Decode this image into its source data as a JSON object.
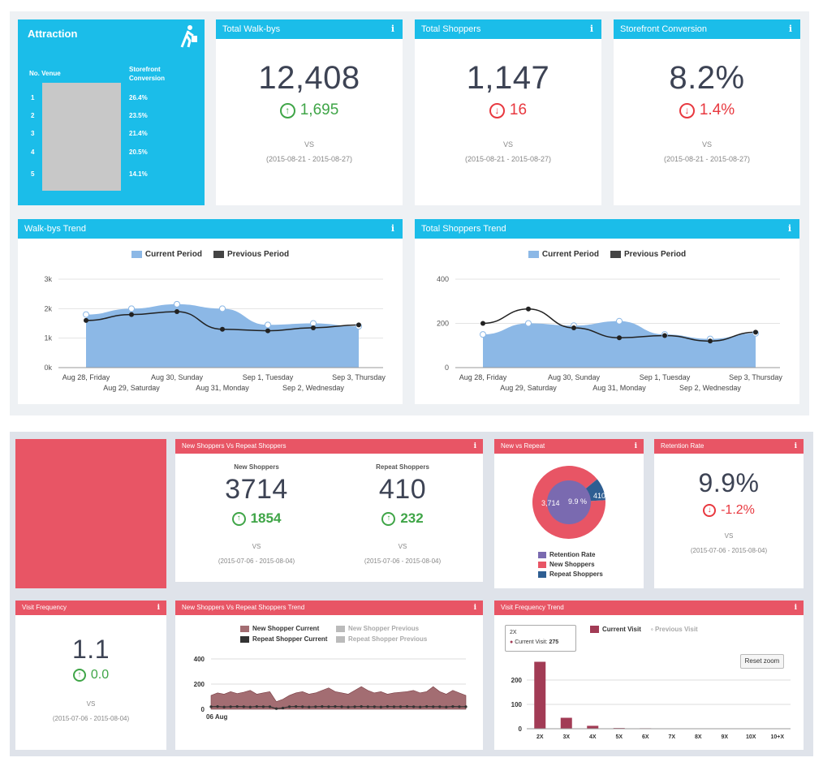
{
  "colors": {
    "blue": "#1bbde9",
    "red": "#e85565",
    "up": "#3fa547",
    "down": "#e8383f",
    "area": "#8cb8e6",
    "line": "#222222"
  },
  "attraction": {
    "title": "Attraction",
    "icon": "walking-person-icon",
    "col_no": "No.",
    "col_venue": "Venue",
    "col_conv": "Storefront Conversion",
    "rows": [
      {
        "no": "1",
        "conv": "26.4%"
      },
      {
        "no": "2",
        "conv": "23.5%"
      },
      {
        "no": "3",
        "conv": "21.4%"
      },
      {
        "no": "4",
        "conv": "20.5%"
      },
      {
        "no": "5",
        "conv": "14.1%"
      }
    ]
  },
  "kpis": [
    {
      "title": "Total Walk-bys",
      "value": "12,408",
      "delta": "1,695",
      "dir": "up",
      "vs": "VS",
      "range": "(2015-08-21 - 2015-08-27)"
    },
    {
      "title": "Total Shoppers",
      "value": "1,147",
      "delta": "16",
      "dir": "down",
      "vs": "VS",
      "range": "(2015-08-21 - 2015-08-27)"
    },
    {
      "title": "Storefront Conversion",
      "value": "8.2%",
      "delta": "1.4%",
      "dir": "down",
      "vs": "VS",
      "range": "(2015-08-21 - 2015-08-27)"
    }
  ],
  "trend_common": {
    "legend_current": "Current Period",
    "legend_previous": "Previous Period",
    "x_upper": [
      "Aug 28, Friday",
      "Aug 30, Sunday",
      "Sep 1, Tuesday",
      "Sep 3, Thursday"
    ],
    "x_lower": [
      "Aug 29, Saturday",
      "Aug 31, Monday",
      "Sep 2, Wednesday"
    ]
  },
  "walkbys_trend": {
    "title": "Walk-bys Trend"
  },
  "shoppers_trend": {
    "title": "Total Shoppers Trend"
  },
  "chart_data": [
    {
      "type": "area",
      "title": "Walk-bys Trend",
      "categories": [
        "Aug 28, Friday",
        "Aug 29, Saturday",
        "Aug 30, Sunday",
        "Aug 31, Monday",
        "Sep 1, Tuesday",
        "Sep 2, Wednesday",
        "Sep 3, Thursday"
      ],
      "yticks": [
        "0k",
        "1k",
        "2k",
        "3k"
      ],
      "ylim": [
        0,
        3000
      ],
      "series": [
        {
          "name": "Current Period",
          "values": [
            1800,
            2000,
            2150,
            2000,
            1450,
            1500,
            1400
          ]
        },
        {
          "name": "Previous Period",
          "values": [
            1600,
            1800,
            1900,
            1300,
            1250,
            1350,
            1450
          ]
        }
      ]
    },
    {
      "type": "area",
      "title": "Total Shoppers Trend",
      "categories": [
        "Aug 28, Friday",
        "Aug 29, Saturday",
        "Aug 30, Sunday",
        "Aug 31, Monday",
        "Sep 1, Tuesday",
        "Sep 2, Wednesday",
        "Sep 3, Thursday"
      ],
      "yticks": [
        "0",
        "200",
        "400"
      ],
      "ylim": [
        0,
        400
      ],
      "series": [
        {
          "name": "Current Period",
          "values": [
            150,
            200,
            190,
            210,
            150,
            130,
            155
          ]
        },
        {
          "name": "Previous Period",
          "values": [
            200,
            265,
            180,
            135,
            145,
            120,
            160
          ]
        }
      ]
    },
    {
      "type": "area",
      "title": "New Shoppers Vs Repeat Shoppers Trend",
      "yticks": [
        "0",
        "200",
        "400"
      ],
      "ylim": [
        0,
        400
      ],
      "xlabel_first": "06 Aug",
      "series": [
        {
          "name": "New Shopper Current",
          "values": [
            110,
            130,
            120,
            140,
            125,
            135,
            150,
            120,
            130,
            140,
            60,
            80,
            110,
            130,
            140,
            120,
            130,
            150,
            170,
            140,
            130,
            120,
            150,
            180,
            150,
            130,
            140,
            120,
            130,
            135,
            140,
            150,
            130,
            140,
            180,
            140,
            120,
            150,
            130,
            110
          ]
        },
        {
          "name": "Repeat Shopper Current",
          "values": [
            20,
            22,
            18,
            20,
            22,
            20,
            18,
            22,
            20,
            20,
            5,
            10,
            20,
            22,
            20,
            18,
            20,
            22,
            20,
            22,
            20,
            18,
            20,
            22,
            20,
            20,
            18,
            22,
            20,
            20,
            22,
            20,
            18,
            22,
            20,
            20,
            18,
            22,
            20,
            20
          ]
        }
      ]
    },
    {
      "type": "bar",
      "title": "Visit Frequency Trend",
      "categories": [
        "2X",
        "3X",
        "4X",
        "5X",
        "6X",
        "7X",
        "8X",
        "9X",
        "10X",
        "10+X"
      ],
      "yticks": [
        "0",
        "100",
        "200"
      ],
      "ylim": [
        0,
        300
      ],
      "series": [
        {
          "name": "Current Visit",
          "values": [
            275,
            45,
            12,
            3,
            2,
            0,
            0,
            0,
            0,
            0
          ]
        }
      ]
    },
    {
      "type": "pie",
      "title": "New vs Repeat",
      "values": [
        3714,
        410
      ],
      "labels": [
        "New Shoppers",
        "Repeat Shoppers"
      ],
      "inner_label": "9.9 %"
    }
  ],
  "nvr": {
    "title": "New Shoppers Vs Repeat Shoppers",
    "new_label": "New Shoppers",
    "new_value": "3714",
    "new_delta": "1854",
    "repeat_label": "Repeat Shoppers",
    "repeat_value": "410",
    "repeat_delta": "232",
    "vs": "VS",
    "range": "(2015-07-06 - 2015-08-04)"
  },
  "pie": {
    "title": "New vs Repeat",
    "outer_label": "3,714",
    "inner_label": "9.9 %",
    "slice_label": "410",
    "legend": [
      "Retention Rate",
      "New Shoppers",
      "Repeat Shoppers"
    ],
    "legend_colors": [
      "#7a6ab0",
      "#e85565",
      "#2e5e92"
    ]
  },
  "retention": {
    "title": "Retention Rate",
    "value": "9.9%",
    "delta": "-1.2%",
    "vs": "VS",
    "range": "(2015-07-06 - 2015-08-04)"
  },
  "visit_freq": {
    "title": "Visit Frequency",
    "value": "1.1",
    "delta": "0.0",
    "vs": "VS",
    "range": "(2015-07-06 - 2015-08-04)"
  },
  "nvr_trend": {
    "title": "New Shoppers Vs Repeat Shoppers Trend",
    "legend": [
      "New Shopper Current",
      "New Shopper Previous",
      "Repeat Shopper Current",
      "Repeat Shopper Previous"
    ]
  },
  "vf_trend": {
    "title": "Visit Frequency Trend",
    "legend_current": "Current Visit",
    "legend_previous": "Previous Visit",
    "reset": "Reset zoom",
    "tooltip_cat": "2X",
    "tooltip_label": "Current Visit:",
    "tooltip_value": "275"
  }
}
